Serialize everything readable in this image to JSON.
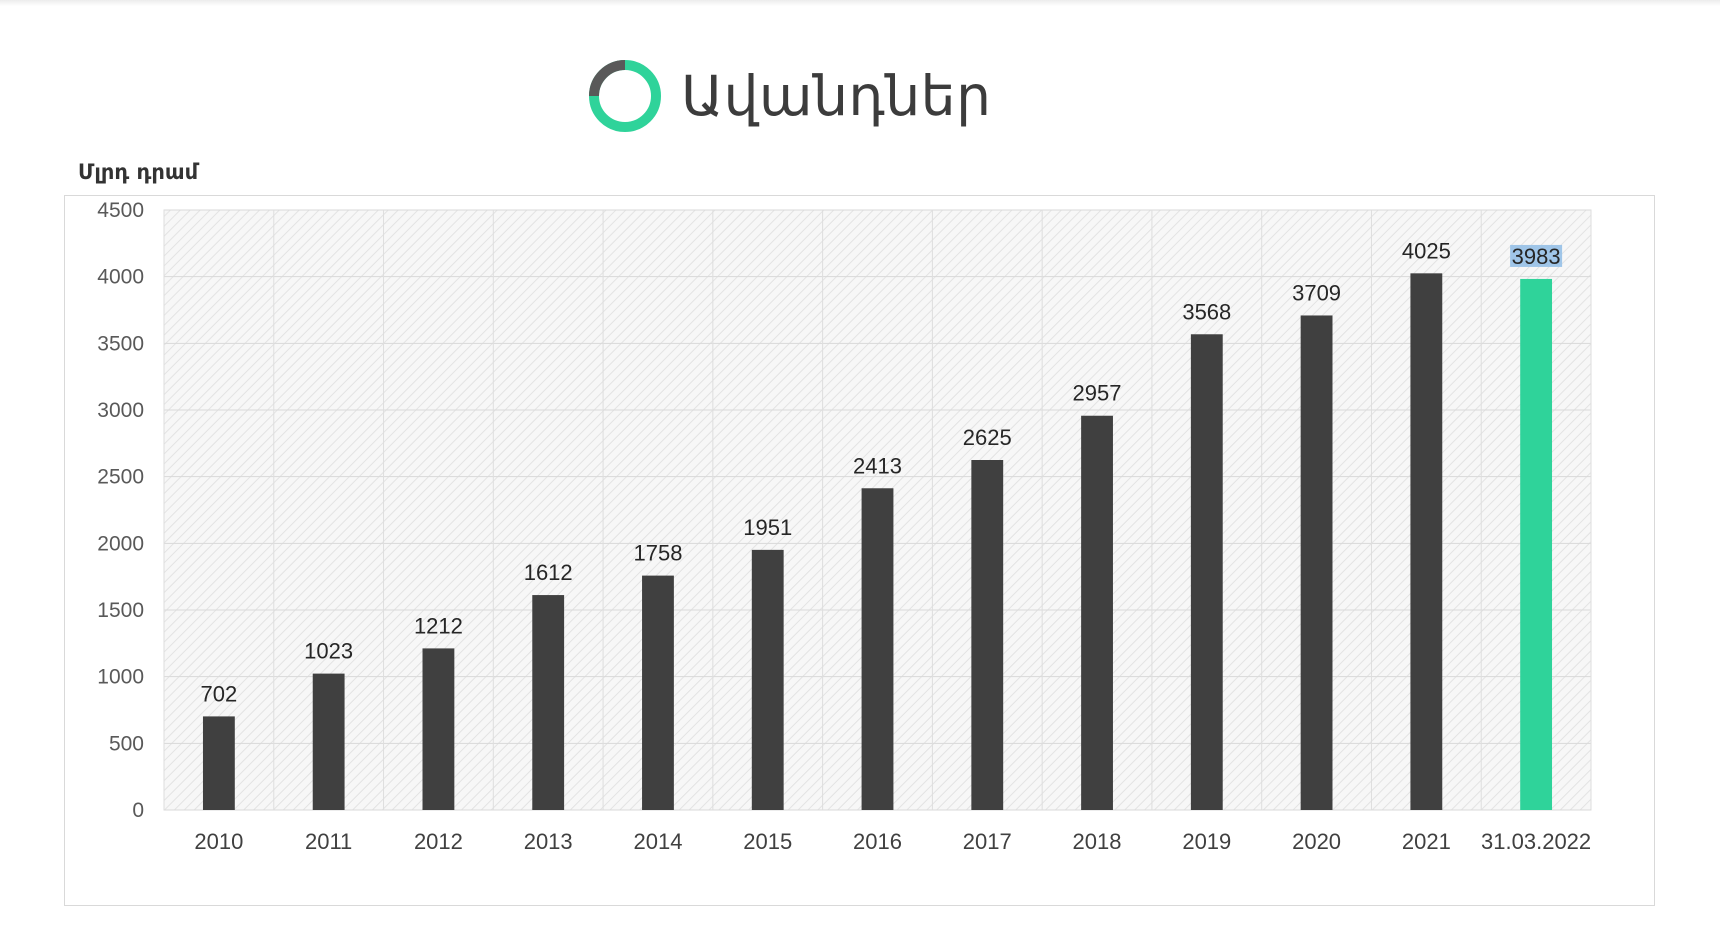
{
  "header": {
    "title": "Ավանդներ",
    "logo_icon": "ring-logo-icon",
    "logo_colors": {
      "main": "#2fd39a",
      "accent": "#595959"
    }
  },
  "chart_data": {
    "type": "bar",
    "title": "Ավանդներ",
    "ylabel": "Մլրդ դրամ",
    "xlabel": "",
    "categories": [
      "2010",
      "2011",
      "2012",
      "2013",
      "2014",
      "2015",
      "2016",
      "2017",
      "2018",
      "2019",
      "2020",
      "2021",
      "31.03.2022"
    ],
    "values": [
      702,
      1023,
      1212,
      1612,
      1758,
      1951,
      2413,
      2625,
      2957,
      3568,
      3709,
      4025,
      3983
    ],
    "ylim": [
      0,
      4500
    ],
    "yticks": [
      0,
      500,
      1000,
      1500,
      2000,
      2500,
      3000,
      3500,
      4000,
      4500
    ],
    "grid": true,
    "legend": "none",
    "colors": {
      "bar": "#404040",
      "highlight": "#2fd39a",
      "highlight_label_bg": "#9fc5e8"
    },
    "highlight_index": 12
  }
}
